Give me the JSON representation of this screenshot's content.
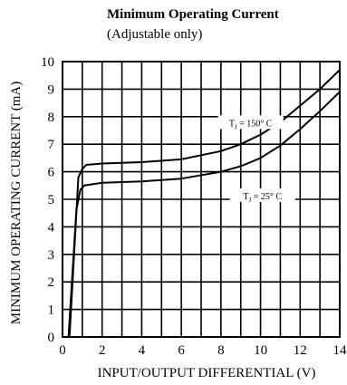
{
  "chart_data": {
    "type": "line",
    "title": "Minimum Operating Current",
    "subtitle": "(Adjustable only)",
    "xlabel": "INPUT/OUTPUT DIFFERENTIAL (V)",
    "ylabel": "MINIMUM OPERATING CURRENT (mA)",
    "xlim": [
      0,
      14
    ],
    "ylim": [
      0,
      10
    ],
    "x_ticks": [
      "0",
      "2",
      "4",
      "6",
      "8",
      "10",
      "12",
      "14"
    ],
    "y_ticks": [
      "0",
      "1",
      "2",
      "3",
      "4",
      "5",
      "6",
      "7",
      "8",
      "9",
      "10"
    ],
    "grid": true,
    "series": [
      {
        "name": "T_J = 150° C",
        "x": [
          0.35,
          0.8,
          1.0,
          1.2,
          2,
          4,
          6,
          8,
          9,
          10,
          11,
          12,
          13,
          14
        ],
        "y": [
          0,
          5.8,
          6.1,
          6.25,
          6.3,
          6.35,
          6.45,
          6.75,
          7.0,
          7.35,
          7.8,
          8.4,
          9.0,
          9.7
        ]
      },
      {
        "name": "T_J = 25° C",
        "x": [
          0.3,
          0.7,
          0.9,
          1.1,
          2,
          4,
          6,
          8,
          9,
          10,
          11,
          12,
          13,
          14
        ],
        "y": [
          0,
          4.6,
          5.35,
          5.5,
          5.6,
          5.65,
          5.75,
          6.0,
          6.2,
          6.5,
          6.95,
          7.55,
          8.2,
          8.9
        ]
      }
    ],
    "annotations": [
      {
        "text": "T",
        "sub": "J",
        "rest": " = 150° C",
        "x": 9.5,
        "y": 7.75
      },
      {
        "text": "T",
        "sub": "J",
        "rest": " = 25° C",
        "x": 10.1,
        "y": 5.1
      }
    ]
  }
}
